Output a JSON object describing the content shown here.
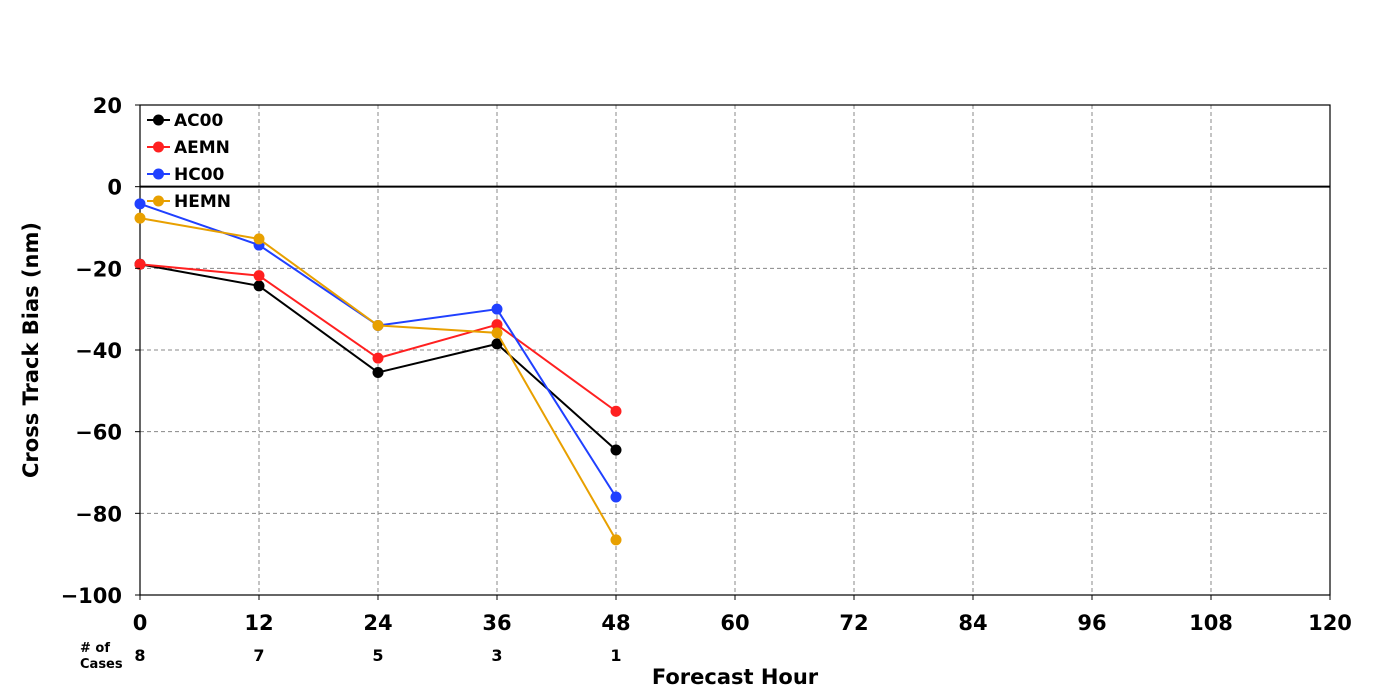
{
  "chart_data": {
    "type": "line",
    "title": "",
    "xlabel": "Forecast Hour",
    "ylabel": "Cross Track Bias (nm)",
    "xlim": [
      0,
      120
    ],
    "ylim": [
      -100,
      20
    ],
    "x_ticks": [
      0,
      12,
      24,
      36,
      48,
      60,
      72,
      84,
      96,
      108,
      120
    ],
    "y_ticks": [
      20,
      0,
      -20,
      -40,
      -60,
      -80,
      -100
    ],
    "grid": true,
    "zero_line": true,
    "legend_position": "top-left",
    "x": [
      0,
      12,
      24,
      36,
      48
    ],
    "series": [
      {
        "name": "AC00",
        "color": "#000000",
        "values": [
          -19,
          -24.3,
          -45.5,
          -38.5,
          -64.5
        ]
      },
      {
        "name": "AEMN",
        "color": "#ff2020",
        "values": [
          -19,
          -21.8,
          -42,
          -33.8,
          -55
        ]
      },
      {
        "name": "HC00",
        "color": "#2040ff",
        "values": [
          -4.2,
          -14.3,
          -34,
          -30,
          -76
        ]
      },
      {
        "name": "HEMN",
        "color": "#e8a000",
        "values": [
          -7.7,
          -12.8,
          -34,
          -35.8,
          -86.5
        ]
      }
    ],
    "cases_label": "# of\nCases",
    "cases_label_lines": [
      "# of",
      "Cases"
    ],
    "cases": [
      {
        "hour": 0,
        "count": "8"
      },
      {
        "hour": 12,
        "count": "7"
      },
      {
        "hour": 24,
        "count": "5"
      },
      {
        "hour": 36,
        "count": "3"
      },
      {
        "hour": 48,
        "count": "1"
      }
    ]
  }
}
